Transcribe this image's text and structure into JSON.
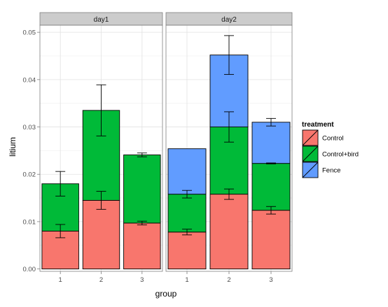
{
  "chart_data": {
    "type": "bar",
    "stacked": true,
    "facets": [
      "day1",
      "day2"
    ],
    "categories": [
      "1",
      "2",
      "3"
    ],
    "xlabel": "group",
    "ylabel": "litium",
    "ylim": [
      -0.0005,
      0.0515
    ],
    "yticks": [
      "0.00",
      "0.01",
      "0.02",
      "0.03",
      "0.04",
      "0.05"
    ],
    "grid": true,
    "legend": {
      "title": "treatment",
      "position": "right"
    },
    "series": [
      {
        "name": "Control",
        "color": "#F8766D",
        "values": {
          "day1": [
            0.008,
            0.0145,
            0.0097
          ],
          "day2": [
            0.0078,
            0.0158,
            0.0124
          ]
        },
        "errors": {
          "day1": [
            0.0014,
            0.0019,
            0.0004
          ],
          "day2": [
            0.0006,
            0.0011,
            0.0008
          ]
        }
      },
      {
        "name": "Control+bird",
        "color": "#00BA38",
        "values": {
          "day1": [
            0.01,
            0.019,
            0.0144
          ],
          "day2": [
            0.008,
            0.0142,
            0.0099
          ]
        },
        "errors": {
          "day1": [
            0.0026,
            0.0054,
            0.0004
          ],
          "day2": [
            0.0008,
            0.0032,
            0.0001
          ]
        }
      },
      {
        "name": "Fence",
        "color": "#619CFF",
        "values": {
          "day1": [
            0,
            0,
            0
          ],
          "day2": [
            0.0096,
            0.0152,
            0.0087
          ]
        },
        "errors": {
          "day1": [
            0,
            0,
            0
          ],
          "day2": [
            0,
            0.0041,
            0.0008
          ]
        }
      }
    ]
  }
}
